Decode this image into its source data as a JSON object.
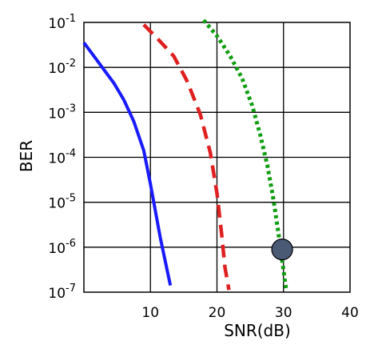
{
  "chart_data": {
    "type": "line",
    "xlabel": "SNR(dB)",
    "ylabel": "BER",
    "xlim": [
      0,
      40
    ],
    "ylim": [
      -7,
      -1
    ],
    "y_scale": "log",
    "grid": true,
    "x_ticks": [
      "10",
      "20",
      "30",
      "40"
    ],
    "y_tick_base": "10",
    "y_tick_exponents": [
      "-1",
      "-2",
      "-3",
      "-4",
      "-5",
      "-6",
      "-7"
    ],
    "series": [
      {
        "color": "#1a1aff",
        "style": "solid",
        "x": [
          0,
          1.5,
          3,
          4.5,
          6,
          7.5,
          9,
          10,
          11.5,
          13
        ],
        "y": [
          -1.45,
          -1.75,
          -2.05,
          -2.35,
          -2.72,
          -3.2,
          -3.85,
          -4.6,
          -5.8,
          -6.85
        ]
      },
      {
        "color": "#e02020",
        "style": "dashed",
        "x": [
          9,
          11,
          13.5,
          15.5,
          17.5,
          19,
          20,
          20.7,
          21.2,
          21.8
        ],
        "y": [
          -1.05,
          -1.35,
          -1.75,
          -2.3,
          -3.05,
          -3.9,
          -4.8,
          -5.7,
          -6.45,
          -6.95
        ]
      },
      {
        "color": "#0f9d10",
        "style": "dotted",
        "x": [
          18,
          20,
          22,
          23.8,
          25.3,
          26.5,
          27.6,
          28.5,
          29.2,
          29.8,
          30.4
        ],
        "y": [
          -0.95,
          -1.3,
          -1.75,
          -2.25,
          -2.85,
          -3.5,
          -4.2,
          -4.95,
          -5.65,
          -6.3,
          -6.95
        ]
      }
    ],
    "marker": {
      "x": 29.8,
      "y": -6.05,
      "color": "#4a5a75"
    }
  }
}
